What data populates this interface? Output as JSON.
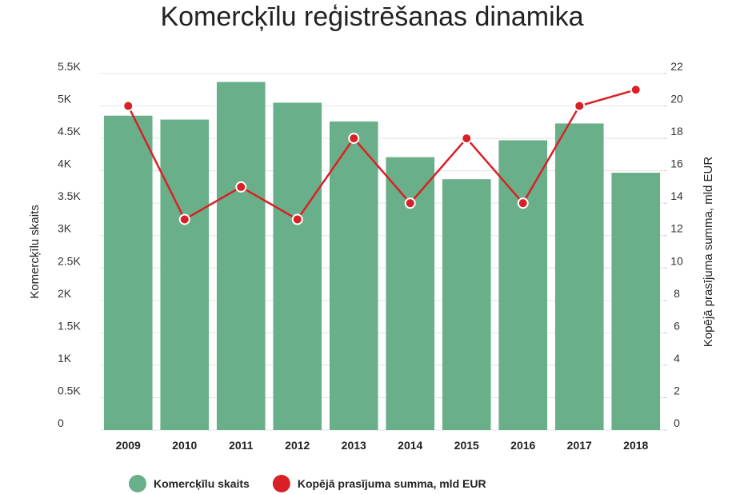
{
  "chart_data": {
    "type": "bar-line",
    "title": "Komercķīlu reģistrēšanas dinamika",
    "y_label": "Komercķīlu skaits",
    "y2_label": "Kopējā prasījuma summa, mld EUR",
    "categories": [
      "2009",
      "2010",
      "2011",
      "2012",
      "2013",
      "2014",
      "2015",
      "2016",
      "2017",
      "2018"
    ],
    "series": [
      {
        "name": "Komercķīlu skaits",
        "color": "#69b08a",
        "type": "bar",
        "values": [
          4850,
          4790,
          5370,
          5050,
          4760,
          4210,
          3870,
          4470,
          4730,
          3970
        ]
      },
      {
        "name": "Kopējā prasījuma summa, mld EUR",
        "color": "#d92026",
        "type": "line",
        "axis": "y2",
        "values": [
          20,
          13,
          15,
          13,
          18,
          14,
          18,
          14,
          20,
          21
        ]
      }
    ],
    "ylim": [
      0,
      5500
    ],
    "yticks": [
      0,
      {
        "value": 500,
        "label": "0.5K"
      },
      {
        "value": 1000,
        "label": "1K"
      },
      {
        "value": 1500,
        "label": "1.5K"
      },
      {
        "value": 2000,
        "label": "2K"
      },
      {
        "value": 2500,
        "label": "2.5K"
      },
      {
        "value": 3000,
        "label": "3K"
      },
      {
        "value": 3500,
        "label": "3.5K"
      },
      {
        "value": 4000,
        "label": "4K"
      },
      {
        "value": 4500,
        "label": "4.5K"
      },
      {
        "value": 5000,
        "label": "5K"
      },
      {
        "value": 5500,
        "label": "5.5K"
      }
    ],
    "y2lim": [
      0,
      22
    ],
    "y2ticks": [
      0,
      2,
      4,
      6,
      8,
      10,
      12,
      14,
      16,
      18,
      20,
      22
    ],
    "grid": true
  }
}
